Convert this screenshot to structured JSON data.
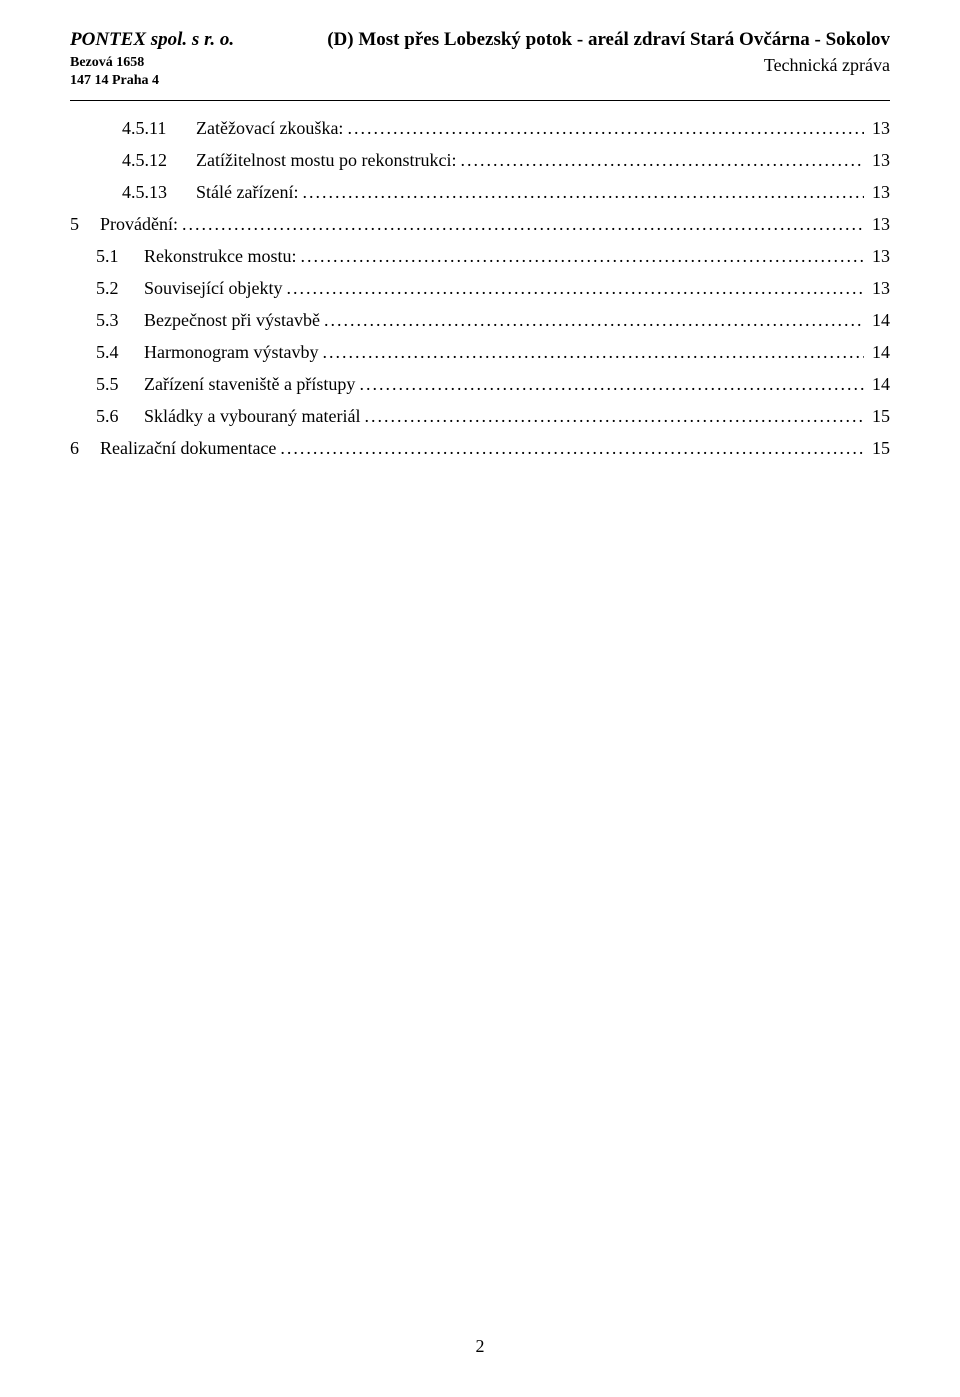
{
  "header": {
    "company_name": "PONTEX spol. s r. o.",
    "address_line1": "Bezová 1658",
    "address_line2": "147 14 Praha 4",
    "doc_title": "(D) Most přes Lobezský potok - areál zdraví Stará Ovčárna - Sokolov",
    "doc_subtitle": "Technická zpráva"
  },
  "toc": [
    {
      "level": "l3",
      "num": "4.5.11",
      "title": "Zatěžovací zkouška:",
      "page": "13"
    },
    {
      "level": "l3",
      "num": "4.5.12",
      "title": "Zatížitelnost mostu po rekonstrukci:",
      "page": "13"
    },
    {
      "level": "l3",
      "num": "4.5.13",
      "title": "Stálé zařízení:",
      "page": "13"
    },
    {
      "level": "l1",
      "num": "5",
      "title": "Provádění:",
      "page": "13"
    },
    {
      "level": "l2",
      "num": "5.1",
      "title": "Rekonstrukce mostu:",
      "page": "13"
    },
    {
      "level": "l2",
      "num": "5.2",
      "title": "Související objekty",
      "page": "13"
    },
    {
      "level": "l2",
      "num": "5.3",
      "title": "Bezpečnost při výstavbě",
      "page": "14"
    },
    {
      "level": "l2",
      "num": "5.4",
      "title": "Harmonogram výstavby",
      "page": "14"
    },
    {
      "level": "l2",
      "num": "5.5",
      "title": "Zařízení staveniště a přístupy",
      "page": "14"
    },
    {
      "level": "l2",
      "num": "5.6",
      "title": "Skládky a vybouraný materiál",
      "page": "15"
    },
    {
      "level": "l1",
      "num": "6",
      "title": "Realizační dokumentace",
      "page": "15"
    }
  ],
  "page_number": "2",
  "colors": {
    "text": "#000000",
    "background": "#ffffff",
    "rule": "#000000"
  }
}
